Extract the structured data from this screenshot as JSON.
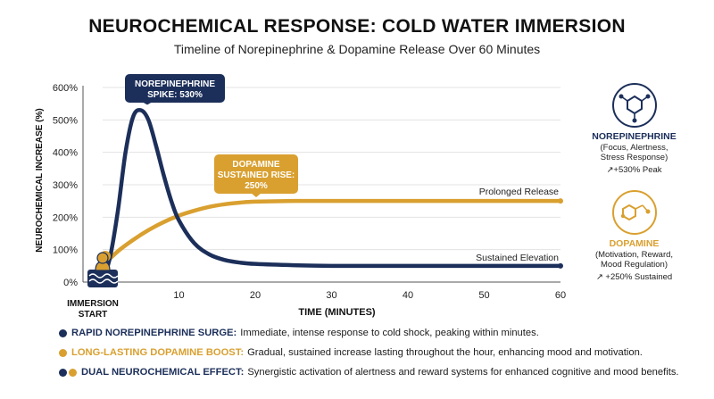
{
  "title": "NEUROCHEMICAL RESPONSE: COLD WATER IMMERSION",
  "subtitle": "Timeline of  Norepinephrine & Dopamine Release Over 60 Minutes",
  "colors": {
    "norepinephrine": "#1c2f5a",
    "dopamine": "#d9a030",
    "grid": "#e3e3e3"
  },
  "chart_data": {
    "type": "line",
    "xlabel": "TIME (MINUTES)",
    "ylabel": "NEUROCHEMICAL INCREASE (%)",
    "xlim": [
      0,
      60
    ],
    "ylim": [
      0,
      600
    ],
    "x_ticks": [
      "10",
      "20",
      "30",
      "40",
      "50",
      "60"
    ],
    "x_tick_values": [
      10,
      20,
      30,
      40,
      50,
      60
    ],
    "y_ticks": [
      "0%",
      "100%",
      "200%",
      "300%",
      "400%",
      "500%",
      "600%"
    ],
    "y_tick_values": [
      0,
      100,
      200,
      300,
      400,
      500,
      600
    ],
    "start_label": [
      "IMMERSION",
      "START"
    ],
    "grid": "horizontal",
    "series": [
      {
        "name": "NOREPINEPHRINE",
        "color": "#1c2f5a",
        "x": [
          0,
          1,
          2,
          3,
          4,
          5,
          6,
          7,
          8,
          9,
          10,
          12,
          14,
          16,
          18,
          20,
          25,
          30,
          40,
          50,
          60
        ],
        "y": [
          0,
          80,
          220,
          400,
          510,
          530,
          500,
          420,
          330,
          250,
          190,
          120,
          85,
          68,
          60,
          56,
          52,
          50,
          50,
          50,
          50
        ]
      },
      {
        "name": "DOPAMINE",
        "color": "#d9a030",
        "x": [
          0,
          2,
          4,
          6,
          8,
          10,
          12,
          14,
          16,
          18,
          20,
          25,
          30,
          40,
          50,
          60
        ],
        "y": [
          50,
          95,
          130,
          160,
          185,
          205,
          220,
          232,
          240,
          245,
          248,
          250,
          250,
          250,
          250,
          250
        ]
      }
    ],
    "annotations": [
      {
        "text": [
          "NOREPINEPHRINE",
          "SPIKE: 530%"
        ],
        "series": 0,
        "x": 5,
        "y": 530
      },
      {
        "text": [
          "DOPAMINE",
          "SUSTAINED RISE:",
          "250%"
        ],
        "series": 1,
        "x": 18,
        "y": 245
      },
      {
        "text": "Prolonged Release",
        "series": 1,
        "x": 60,
        "y": 250
      },
      {
        "text": "Sustained Elevation",
        "series": 0,
        "x": 60,
        "y": 50
      }
    ]
  },
  "legend": {
    "norepinephrine": {
      "name": "NOREPINEPHRINE",
      "desc": [
        "(Focus, Alertness,",
        "Stress Response)"
      ],
      "peak": "↗+530% Peak",
      "icon": "molecule-icon"
    },
    "dopamine": {
      "name": "DOPAMINE",
      "desc": [
        "(Motivation, Reward,",
        "Mood Regulation)"
      ],
      "peak": "↗ +250% Sustained",
      "icon": "molecule-icon"
    }
  },
  "bullets": [
    {
      "head": "RAPID NOREPINEPHRINE SURGE:",
      "text": "Immediate, intense response to cold shock, peaking within minutes.",
      "dots": [
        "norepinephrine"
      ],
      "head_color": "#1c2f5a"
    },
    {
      "head": "LONG-LASTING DOPAMINE BOOST:",
      "text": "Gradual, sustained increase lasting throughout the hour, enhancing mood and motivation.",
      "dots": [
        "dopamine"
      ],
      "head_color": "#d9a030"
    },
    {
      "head": "DUAL NEUROCHEMICAL EFFECT:",
      "text": "Synergistic activation of alertness and reward systems for enhanced cognitive and mood benefits.",
      "dots": [
        "norepinephrine",
        "dopamine"
      ],
      "head_color": "#1c2f5a"
    }
  ]
}
